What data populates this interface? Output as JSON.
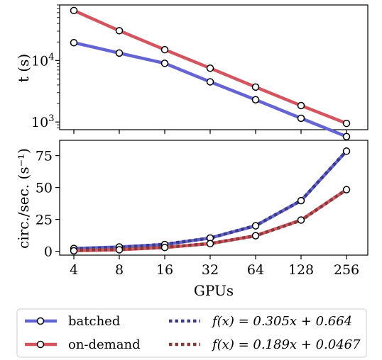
{
  "colors": {
    "batched": "#6464d2",
    "on_demand": "#d2555f",
    "fit_batched": "#3c3c82",
    "fit_on_demand": "#823c3c"
  },
  "chart_data": [
    {
      "type": "line",
      "yscale": "log",
      "x": [
        4,
        8,
        16,
        32,
        64,
        128,
        256
      ],
      "xscale": "log2",
      "ylabel": "t (s)",
      "ylim": [
        750,
        80000
      ],
      "yticks": [
        {
          "value": 1000,
          "base": "10",
          "exp": "3"
        },
        {
          "value": 10000,
          "base": "10",
          "exp": "4"
        }
      ],
      "series": [
        {
          "name": "batched",
          "values": [
            19500,
            13200,
            9000,
            4500,
            2300,
            1150,
            580
          ]
        },
        {
          "name": "on-demand",
          "values": [
            65000,
            30500,
            15000,
            7500,
            3700,
            1850,
            950
          ]
        }
      ]
    },
    {
      "type": "line",
      "x": [
        4,
        8,
        16,
        32,
        64,
        128,
        256
      ],
      "xscale": "log2",
      "xlabel": "GPUs",
      "xticks": [
        "4",
        "8",
        "16",
        "32",
        "64",
        "128",
        "256"
      ],
      "ylabel": "circ./sec. (s⁻¹)",
      "ylim": [
        -3,
        87
      ],
      "yticks": [
        "0",
        "25",
        "50",
        "75"
      ],
      "series": [
        {
          "name": "batched",
          "values": [
            2.2,
            3.4,
            5.3,
            10.4,
            20.0,
            39.7,
            78.5
          ]
        },
        {
          "name": "on-demand",
          "values": [
            0.4,
            1.2,
            3.0,
            6.0,
            12.2,
            24.5,
            48.3
          ]
        }
      ],
      "fits": [
        {
          "name": "f(x) = 0.305x + 0.664",
          "slope": 0.305,
          "intercept": 0.664
        },
        {
          "name": "f(x) = 0.189x + 0.0467",
          "slope": 0.189,
          "intercept": 0.0467
        }
      ]
    }
  ],
  "legend": {
    "batched": "batched",
    "on_demand": "on-demand",
    "fit_batched": "f(x) = 0.305x + 0.664",
    "fit_on_demand": "f(x) = 0.189x + 0.0467"
  }
}
